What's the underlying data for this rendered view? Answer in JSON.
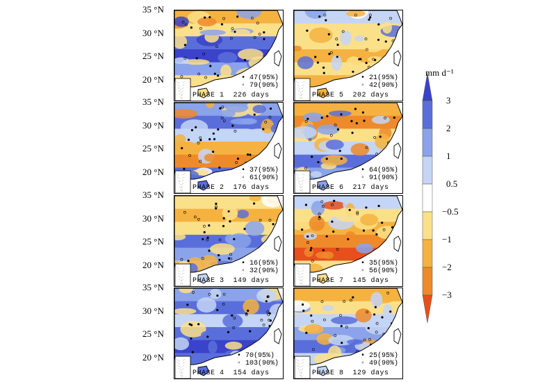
{
  "colorbar": {
    "units": "mm d⁻¹",
    "ticks": [
      "3",
      "2",
      "1",
      "0.5",
      "−0.5",
      "−1",
      "−2",
      "−3"
    ],
    "colors": [
      "#3a43c9",
      "#5a6edb",
      "#8aa3ea",
      "#c4d5f5",
      "#ffffff",
      "#fbe08a",
      "#f5b240",
      "#ee8a2a",
      "#e84f1c"
    ]
  },
  "latitude_labels": [
    "35 °N",
    "30 °N",
    "25 °N",
    "20 °N"
  ],
  "panels": [
    {
      "phase": "PHASE 1",
      "days": "226 days",
      "sig95": "47(95%)",
      "sig90": "79(90%)"
    },
    {
      "phase": "PHASE 5",
      "days": "202 days",
      "sig95": "21(95%)",
      "sig90": "42(90%)"
    },
    {
      "phase": "PHASE 2",
      "days": "176 days",
      "sig95": "37(95%)",
      "sig90": "61(90%)"
    },
    {
      "phase": "PHASE 6",
      "days": "217 days",
      "sig95": "64(95%)",
      "sig90": "91(90%)"
    },
    {
      "phase": "PHASE 3",
      "days": "149 days",
      "sig95": "16(95%)",
      "sig90": "32(90%)"
    },
    {
      "phase": "PHASE 7",
      "days": "145 days",
      "sig95": "35(95%)",
      "sig90": "56(90%)"
    },
    {
      "phase": "PHASE 4",
      "days": "154 days",
      "sig95": "70(95%)",
      "sig90": "103(90%)"
    },
    {
      "phase": "PHASE 8",
      "days": "129 days",
      "sig95": "25(95%)",
      "sig90": "49(90%)"
    }
  ]
}
